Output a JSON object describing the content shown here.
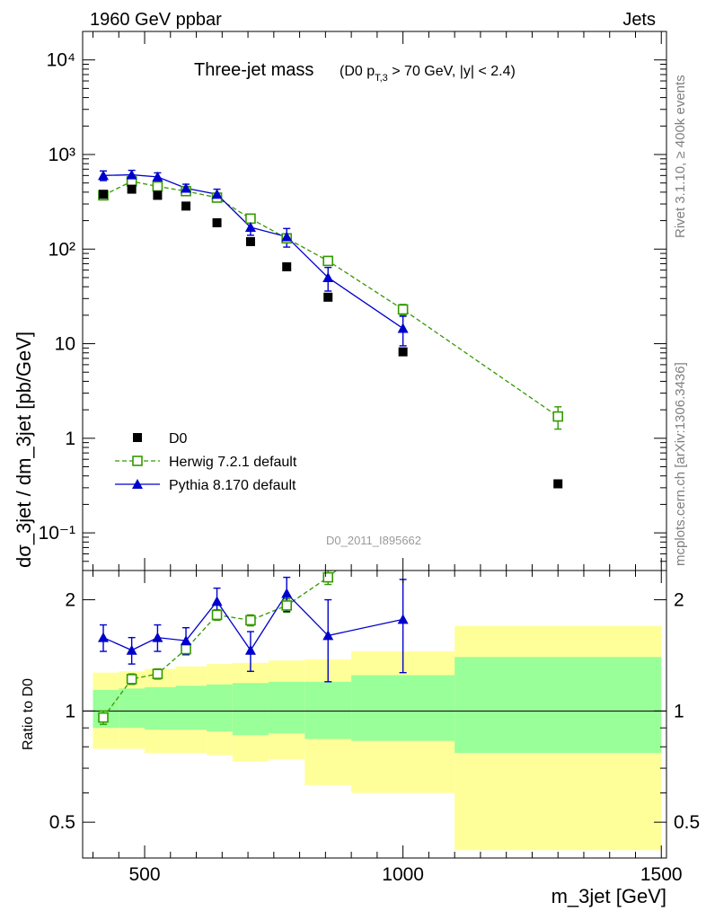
{
  "header": {
    "left": "1960 GeV ppbar",
    "right": "Jets"
  },
  "side_labels": {
    "rivet": "Rivet 3.1.10, ≥ 400k events",
    "mcplots": "mcplots.cern.ch [arXiv:1306.3436]"
  },
  "analysis_id": "D0_2011_I895662",
  "colors": {
    "data": "#000000",
    "herwig": "#339900",
    "pythia": "#0000cc",
    "band_outer": "#ffff99",
    "band_inner": "#99ff99"
  },
  "chart_data": [
    {
      "type": "scatter",
      "panel": "main",
      "title": "Three-jet mass",
      "title_cut": "(D0 p_T,3 > 70 GeV, |y| < 2.4)",
      "ylabel": "dσ_3jet / dm_3jet [pb/GeV]",
      "yscale": "log",
      "xlim": [
        380,
        1510
      ],
      "ylim": [
        0.04,
        20000
      ],
      "xticks": [
        500,
        1000,
        1500
      ],
      "yticks": [
        {
          "value": 0.1,
          "label": "10⁻¹"
        },
        {
          "value": 1,
          "label": "1"
        },
        {
          "value": 10,
          "label": "10"
        },
        {
          "value": 100,
          "label": "10²"
        },
        {
          "value": 1000,
          "label": "10³"
        },
        {
          "value": 10000,
          "label": "10⁴"
        }
      ],
      "legend_position": "lower-left",
      "series": [
        {
          "name": "D0",
          "style": "filled-square",
          "x": [
            420,
            475,
            525,
            580,
            640,
            705,
            775,
            855,
            1000,
            1300
          ],
          "y": [
            380,
            430,
            370,
            285,
            190,
            120,
            65,
            31,
            8.2,
            0.33
          ]
        },
        {
          "name": "Herwig 7.2.1 default",
          "style": "open-square-dashed",
          "x": [
            420,
            475,
            525,
            580,
            640,
            705,
            775,
            855,
            1000,
            1300
          ],
          "y": [
            370,
            520,
            460,
            410,
            350,
            210,
            130,
            75,
            23,
            1.7
          ],
          "err": [
            20,
            25,
            25,
            25,
            25,
            15,
            10,
            6,
            3,
            0.45
          ]
        },
        {
          "name": "Pythia 8.170 default",
          "style": "filled-triangle-solid",
          "x": [
            420,
            475,
            525,
            580,
            640,
            705,
            775,
            855,
            1000
          ],
          "y": [
            600,
            610,
            580,
            440,
            380,
            170,
            135,
            50,
            14.5
          ],
          "err": [
            70,
            70,
            60,
            45,
            50,
            30,
            30,
            14,
            5
          ]
        }
      ]
    },
    {
      "type": "line",
      "panel": "ratio",
      "ylabel": "Ratio to D0",
      "xlabel": "m_3jet [GeV]",
      "yscale": "log",
      "xlim": [
        380,
        1510
      ],
      "ylim": [
        0.4,
        2.4
      ],
      "xticks": [
        500,
        1000,
        1500
      ],
      "yticks": [
        0.5,
        1,
        2
      ],
      "reference": 1,
      "bands": {
        "edges": [
          400,
          450,
          500,
          560,
          620,
          670,
          740,
          810,
          900,
          1100,
          1500
        ],
        "outer_lo": [
          0.79,
          0.79,
          0.77,
          0.77,
          0.76,
          0.73,
          0.74,
          0.63,
          0.6,
          0.42
        ],
        "outer_hi": [
          1.27,
          1.28,
          1.3,
          1.32,
          1.34,
          1.35,
          1.37,
          1.38,
          1.45,
          1.7
        ],
        "inner_lo": [
          0.9,
          0.9,
          0.89,
          0.89,
          0.88,
          0.86,
          0.87,
          0.84,
          0.83,
          0.77
        ],
        "inner_hi": [
          1.14,
          1.15,
          1.16,
          1.17,
          1.18,
          1.19,
          1.2,
          1.2,
          1.25,
          1.4
        ]
      },
      "series": [
        {
          "name": "Herwig 7.2.1 default",
          "x": [
            420,
            475,
            525,
            580,
            640,
            705,
            775,
            855
          ],
          "y": [
            0.96,
            1.22,
            1.26,
            1.47,
            1.82,
            1.76,
            1.93,
            2.3
          ],
          "err": [
            0.04,
            0.04,
            0.04,
            0.05,
            0.06,
            0.06,
            0.08,
            0.1
          ]
        },
        {
          "name": "Pythia 8.170 default",
          "x": [
            420,
            475,
            525,
            580,
            640,
            705,
            775,
            855,
            1000
          ],
          "y": [
            1.58,
            1.46,
            1.58,
            1.55,
            1.98,
            1.46,
            2.08,
            1.6,
            1.77
          ],
          "err": [
            0.13,
            0.12,
            0.13,
            0.13,
            0.17,
            0.18,
            0.22,
            0.4,
            0.5
          ]
        }
      ]
    }
  ]
}
